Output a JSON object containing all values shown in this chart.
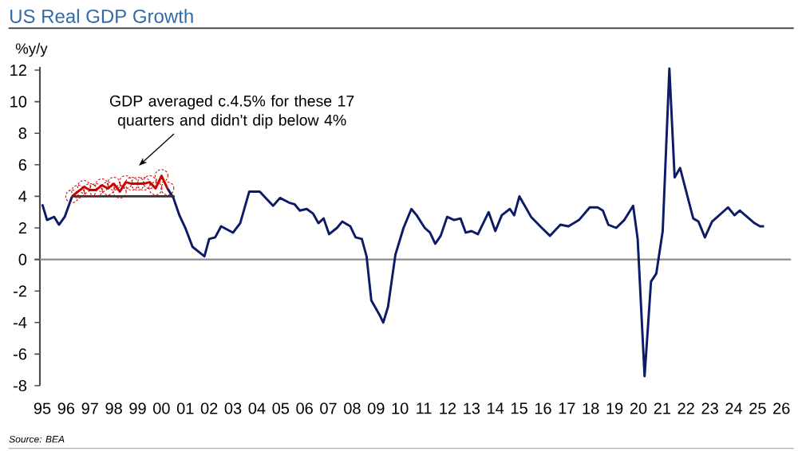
{
  "chart_data": {
    "type": "line",
    "title": "US Real GDP Growth",
    "ylabel": "%y/y",
    "xlim": [
      1994.9,
      2026.4
    ],
    "ylim": [
      -8,
      12.2
    ],
    "xticks": [
      {
        "value": 1995,
        "label": "95"
      },
      {
        "value": 1996,
        "label": "96"
      },
      {
        "value": 1997,
        "label": "97"
      },
      {
        "value": 1998,
        "label": "98"
      },
      {
        "value": 1999,
        "label": "99"
      },
      {
        "value": 2000,
        "label": "00"
      },
      {
        "value": 2001,
        "label": "01"
      },
      {
        "value": 2002,
        "label": "02"
      },
      {
        "value": 2003,
        "label": "03"
      },
      {
        "value": 2004,
        "label": "04"
      },
      {
        "value": 2005,
        "label": "05"
      },
      {
        "value": 2006,
        "label": "06"
      },
      {
        "value": 2007,
        "label": "07"
      },
      {
        "value": 2008,
        "label": "08"
      },
      {
        "value": 2009,
        "label": "09"
      },
      {
        "value": 2010,
        "label": "10"
      },
      {
        "value": 2011,
        "label": "11"
      },
      {
        "value": 2012,
        "label": "12"
      },
      {
        "value": 2013,
        "label": "13"
      },
      {
        "value": 2014,
        "label": "14"
      },
      {
        "value": 2015,
        "label": "15"
      },
      {
        "value": 2016,
        "label": "16"
      },
      {
        "value": 2017,
        "label": "17"
      },
      {
        "value": 2018,
        "label": "18"
      },
      {
        "value": 2019,
        "label": "19"
      },
      {
        "value": 2020,
        "label": "20"
      },
      {
        "value": 2021,
        "label": "21"
      },
      {
        "value": 2022,
        "label": "22"
      },
      {
        "value": 2023,
        "label": "23"
      },
      {
        "value": 2024,
        "label": "24"
      },
      {
        "value": 2025,
        "label": "25"
      },
      {
        "value": 2026,
        "label": "26"
      }
    ],
    "yticks": [
      -8,
      -6,
      -4,
      -2,
      0,
      2,
      4,
      6,
      8,
      10,
      12
    ],
    "series": [
      {
        "color": "#0d1a66",
        "marker": "none",
        "line_style": "solid",
        "x": [
          1995.0,
          1995.2,
          1995.5,
          1995.7,
          1995.94,
          1996.25,
          1998.0,
          2000.25,
          2000.5,
          2000.75,
          2001.0,
          2001.3,
          2001.8,
          2002.0,
          2002.25,
          2002.5,
          2003.0,
          2003.3,
          2003.68,
          2004.12,
          2004.68,
          2004.97,
          2005.35,
          2005.58,
          2005.8,
          2006.09,
          2006.36,
          2006.58,
          2006.8,
          2007.03,
          2007.36,
          2007.58,
          2007.92,
          2008.14,
          2008.4,
          2008.6,
          2008.8,
          2009.14,
          2009.3,
          2009.5,
          2009.81,
          2010.15,
          2010.48,
          2010.7,
          2011.04,
          2011.26,
          2011.48,
          2011.71,
          2011.98,
          2012.27,
          2012.54,
          2012.76,
          2013.0,
          2013.27,
          2013.72,
          2014.0,
          2014.27,
          2014.61,
          2014.79,
          2015.01,
          2015.5,
          2015.95,
          2016.29,
          2016.73,
          2017.07,
          2017.51,
          2017.96,
          2018.29,
          2018.51,
          2018.74,
          2019.07,
          2019.41,
          2019.78,
          2019.97,
          2020.26,
          2020.53,
          2020.75,
          2021.02,
          2021.3,
          2021.52,
          2021.75,
          2022.3,
          2022.52,
          2022.79,
          2023.09,
          2023.76,
          2024.03,
          2024.25,
          2024.87,
          2025.1,
          2025.27
        ],
        "values": [
          3.5,
          2.5,
          2.7,
          2.2,
          2.7,
          4.0,
          null,
          4.5,
          3.9,
          2.8,
          2.0,
          0.8,
          0.2,
          1.3,
          1.4,
          2.1,
          1.7,
          2.3,
          4.3,
          4.3,
          3.4,
          3.9,
          3.6,
          3.5,
          3.1,
          3.2,
          2.9,
          2.3,
          2.6,
          1.6,
          2.0,
          2.4,
          2.1,
          1.4,
          1.3,
          0.2,
          -2.6,
          -3.5,
          -4.0,
          -3.0,
          0.3,
          2.0,
          3.2,
          2.8,
          2.0,
          1.7,
          1.0,
          1.5,
          2.7,
          2.5,
          2.6,
          1.7,
          1.8,
          1.6,
          3.0,
          1.8,
          2.8,
          3.2,
          2.8,
          4.0,
          2.7,
          2.0,
          1.5,
          2.2,
          2.1,
          2.5,
          3.3,
          3.3,
          3.1,
          2.2,
          2.0,
          2.5,
          3.4,
          1.3,
          -7.4,
          -1.4,
          -0.9,
          1.8,
          12.1,
          5.2,
          5.8,
          2.6,
          2.4,
          1.4,
          2.4,
          3.3,
          2.8,
          3.1,
          2.3,
          2.1,
          2.1
        ]
      },
      {
        "color": "#cc0000",
        "marker": "circle",
        "line_style": "solid",
        "x": [
          1996.25,
          1996.5,
          1996.75,
          1997.0,
          1997.25,
          1997.5,
          1997.75,
          1998.0,
          1998.25,
          1998.5,
          1998.75,
          1999.0,
          1999.25,
          1999.5,
          1999.75,
          2000.0,
          2000.25
        ],
        "values": [
          4.0,
          4.3,
          4.6,
          4.4,
          4.4,
          4.7,
          4.5,
          4.8,
          4.3,
          4.9,
          4.8,
          4.8,
          4.8,
          4.9,
          4.5,
          5.3,
          4.5
        ]
      },
      {
        "color": "#333333",
        "marker": "none",
        "line_style": "solid",
        "x": [
          1996.25,
          2000.55
        ],
        "values": [
          4,
          4
        ]
      }
    ],
    "annotations": [
      "GDP averaged c.4.5% for these 17 quarters and didn't dip below 4%",
      "Source: BEA"
    ]
  }
}
